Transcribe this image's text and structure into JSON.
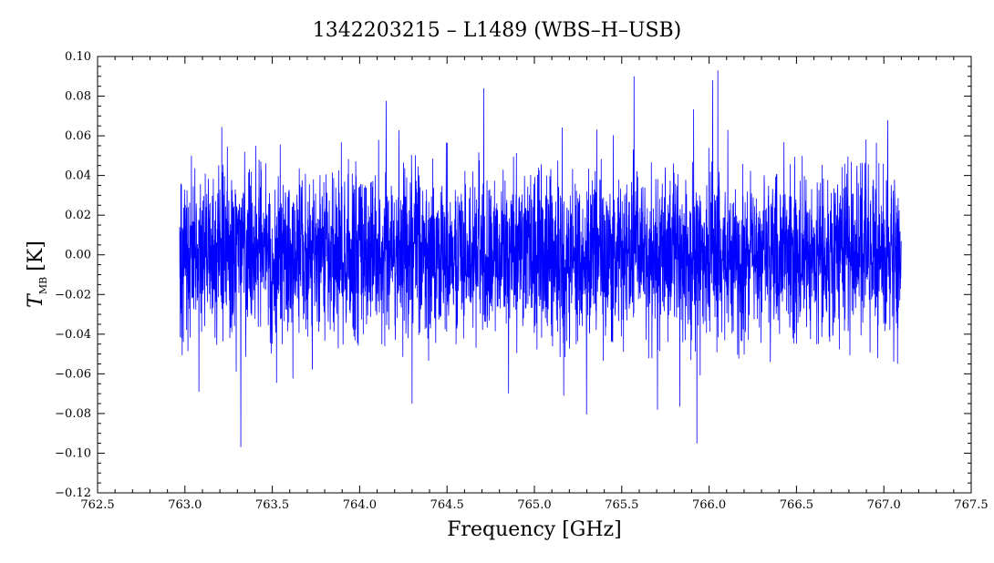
{
  "chart_data": {
    "type": "line",
    "title": "1342203215 – L1489 (WBS–H–USB)",
    "xlabel": "Frequency [GHz]",
    "ylabel": {
      "symbol": "T",
      "subscript": "MB",
      "unit": "[K]"
    },
    "xlim": [
      762.5,
      767.5
    ],
    "ylim": [
      -0.12,
      0.1
    ],
    "x_ticks": [
      "762.5",
      "763.0",
      "763.5",
      "764.0",
      "764.5",
      "765.0",
      "765.5",
      "766.0",
      "766.5",
      "767.0",
      "767.5"
    ],
    "y_ticks": [
      "-0.12",
      "-0.10",
      "-0.08",
      "-0.06",
      "-0.04",
      "-0.02",
      "0.00",
      "0.02",
      "0.04",
      "0.06",
      "0.08",
      "0.10"
    ],
    "grid": false,
    "legend": "none",
    "series": [
      {
        "color": "#0000ff",
        "description_values": {
          "x_start": 762.97,
          "x_end": 767.1,
          "channel_spacing_ghz": 0.0011,
          "noise_rms": 0.021,
          "max_value": 0.093,
          "min_value": -0.097,
          "spikes": [
            {
              "x": 763.32,
              "y": -0.097
            },
            {
              "x": 764.71,
              "y": 0.084
            },
            {
              "x": 765.57,
              "y": 0.09
            },
            {
              "x": 765.93,
              "y": -0.095
            },
            {
              "x": 766.05,
              "y": 0.093
            },
            {
              "x": 766.02,
              "y": 0.088
            },
            {
              "x": 764.3,
              "y": -0.075
            },
            {
              "x": 763.08,
              "y": -0.069
            }
          ]
        }
      }
    ]
  }
}
